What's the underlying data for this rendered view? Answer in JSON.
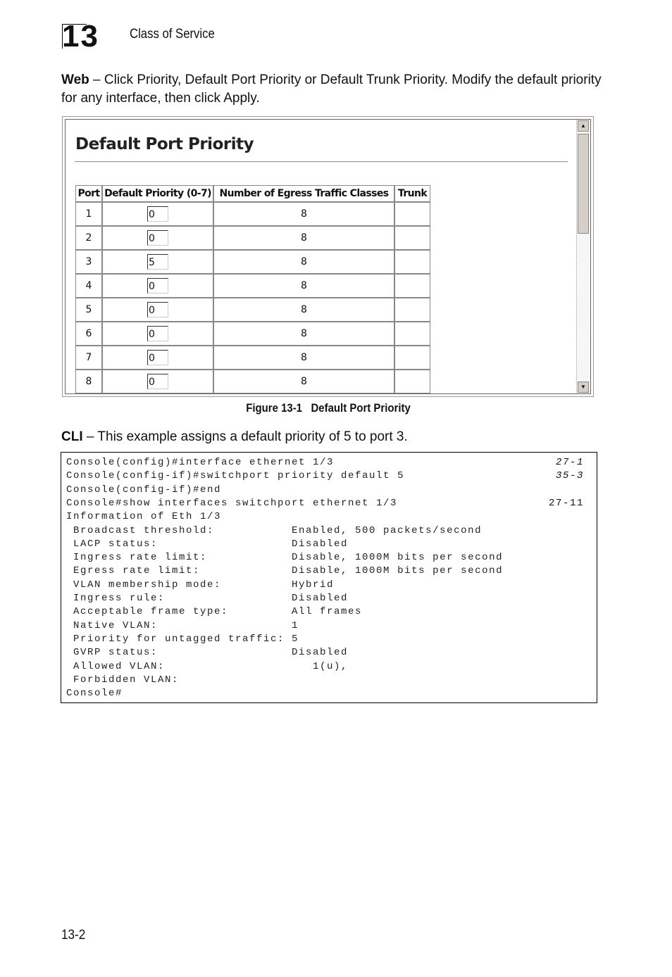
{
  "header": {
    "chapter": "13",
    "title": "Class of Service"
  },
  "intro": {
    "lead": "Web",
    "text": "– Click Priority, Default Port Priority or Default Trunk Priority. Modify the default priority for any interface, then click Apply."
  },
  "figure": {
    "heading": "Default Port Priority",
    "columns": [
      "Port",
      "Default Priority (0-7)",
      "Number of Egress Traffic Classes",
      "Trunk"
    ],
    "rows": [
      [
        "1",
        "0",
        "8"
      ],
      [
        "2",
        "0",
        "8"
      ],
      [
        "3",
        "5",
        "8"
      ],
      [
        "4",
        "0",
        "8"
      ],
      [
        "5",
        "0",
        "8"
      ],
      [
        "6",
        "0",
        "8"
      ],
      [
        "7",
        "0",
        "8"
      ],
      [
        "8",
        "0",
        "8"
      ]
    ],
    "caption_number": "Figure 13-1",
    "caption_text": "Default Port Priority"
  },
  "cli": {
    "lead": "CLI",
    "text": "– This example assigns a default priority of 5 to port 3.",
    "lines": [
      {
        "text": "Console(config)#interface ethernet 1/3",
        "ref": "27-1"
      },
      {
        "text": "Console(config-if)#switchport priority default 5",
        "ref": "35-3"
      },
      {
        "text": "Console(config-if)#end"
      },
      {
        "text": "Console#show interfaces switchport ethernet 1/3",
        "ref": "27-11"
      },
      {
        "text": "Information of Eth 1/3"
      },
      {
        "text": " Broadcast threshold:           Enabled, 500 packets/second"
      },
      {
        "text": " LACP status:                   Disabled"
      },
      {
        "text": " Ingress rate limit:            Disable, 1000M bits per second"
      },
      {
        "text": " Egress rate limit:             Disable, 1000M bits per second"
      },
      {
        "text": " VLAN membership mode:          Hybrid"
      },
      {
        "text": " Ingress rule:                  Disabled"
      },
      {
        "text": " Acceptable frame type:         All frames"
      },
      {
        "text": " Native VLAN:                   1"
      },
      {
        "text": " Priority for untagged traffic: 5"
      },
      {
        "text": " GVRP status:                   Disabled"
      },
      {
        "text": " Allowed VLAN:                     1(u),"
      },
      {
        "text": " Forbidden VLAN:"
      },
      {
        "text": "Console#"
      }
    ]
  },
  "footer": {
    "page": "13-2"
  }
}
